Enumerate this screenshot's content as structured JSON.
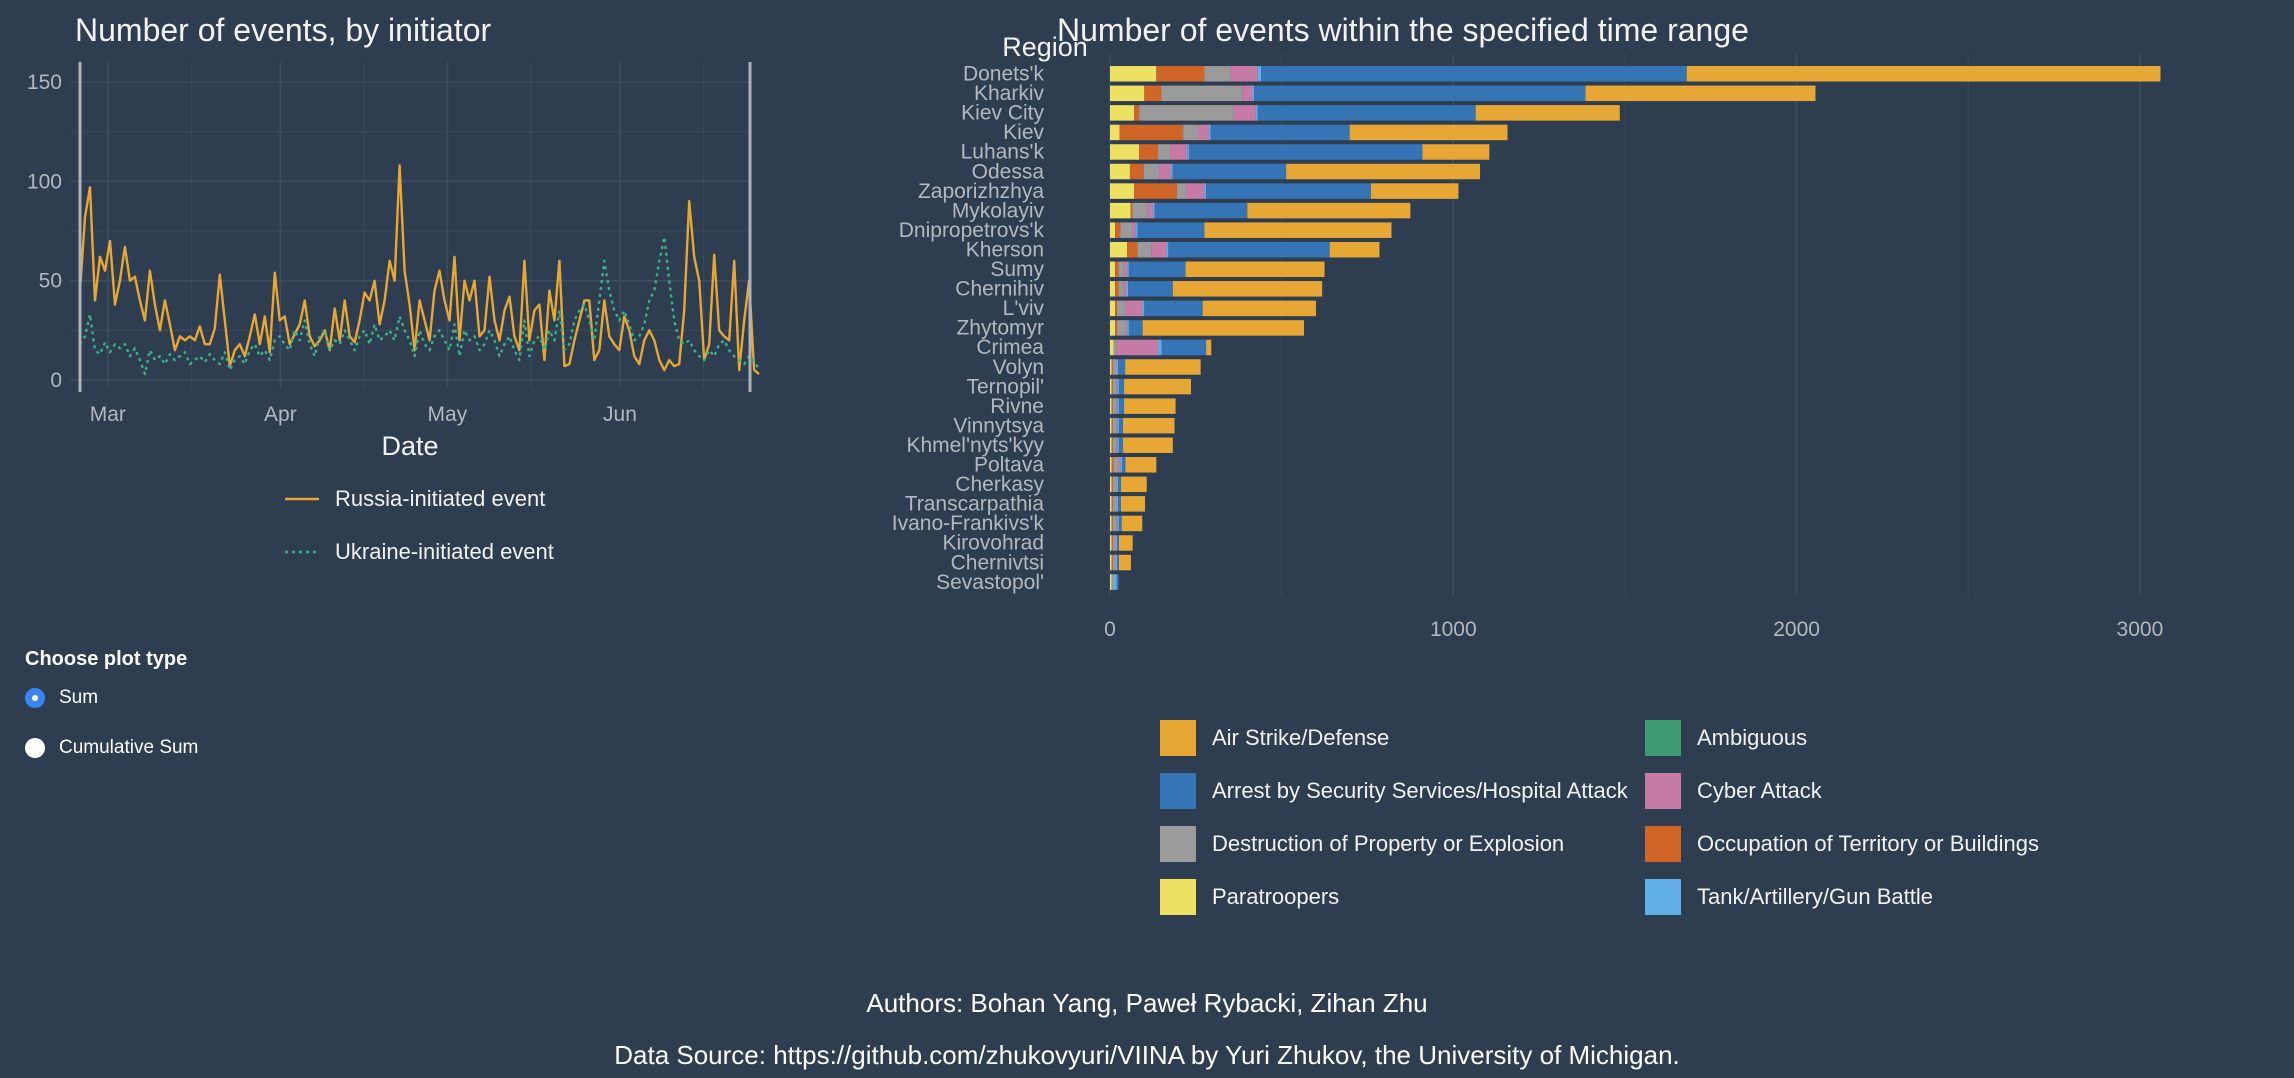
{
  "colors": {
    "background": "#2e3d4f",
    "grid": "#3e4d5f",
    "russia_line": "#e6a735",
    "ukraine_line": "#3bb18a",
    "radio_accent": "#3a86f0"
  },
  "chart_data": [
    {
      "type": "line",
      "title": "Number of events, by initiator",
      "xlabel": "Date",
      "ylabel": "",
      "ylim": [
        0,
        150
      ],
      "y_ticks": [
        0,
        50,
        100,
        150
      ],
      "x_ticks": [
        {
          "label": "Mar",
          "date": "2022-03-01"
        },
        {
          "label": "Apr",
          "date": "2022-04-01"
        },
        {
          "label": "May",
          "date": "2022-05-01"
        },
        {
          "label": "Jun",
          "date": "2022-06-01"
        }
      ],
      "x_range": [
        "2022-02-24",
        "2022-06-24"
      ],
      "selected_range": [
        "2022-02-24",
        "2022-06-24"
      ],
      "x_start": "2022-02-24",
      "legend_position": "bottom",
      "series": [
        {
          "name": "Russia-initiated event",
          "style": "solid",
          "color": "#e6a735",
          "values": [
            45,
            82,
            97,
            40,
            62,
            55,
            70,
            38,
            50,
            67,
            50,
            52,
            40,
            30,
            55,
            38,
            25,
            40,
            28,
            15,
            22,
            20,
            22,
            20,
            27,
            18,
            18,
            26,
            53,
            30,
            7,
            15,
            18,
            12,
            22,
            33,
            18,
            32,
            14,
            54,
            30,
            32,
            18,
            23,
            28,
            40,
            22,
            17,
            20,
            25,
            15,
            36,
            20,
            40,
            22,
            19,
            30,
            44,
            40,
            50,
            28,
            40,
            60,
            50,
            108,
            55,
            38,
            15,
            40,
            30,
            20,
            45,
            55,
            40,
            30,
            62,
            20,
            50,
            40,
            50,
            22,
            25,
            52,
            30,
            20,
            35,
            42,
            22,
            15,
            60,
            20,
            35,
            38,
            10,
            45,
            30,
            60,
            7,
            8,
            20,
            30,
            40,
            40,
            10,
            15,
            40,
            22,
            18,
            15,
            32,
            25,
            12,
            8,
            20,
            25,
            20,
            10,
            5,
            10,
            7,
            8,
            35,
            90,
            62,
            50,
            10,
            18,
            63,
            25,
            22,
            20,
            60,
            5,
            30,
            50,
            5,
            3
          ]
        },
        {
          "name": "Ukraine-initiated event",
          "style": "dotted",
          "color": "#3bb18a",
          "values": [
            18,
            22,
            33,
            15,
            13,
            19,
            14,
            18,
            16,
            18,
            12,
            16,
            10,
            3,
            15,
            10,
            12,
            8,
            13,
            10,
            12,
            14,
            8,
            10,
            12,
            9,
            13,
            10,
            8,
            14,
            5,
            10,
            12,
            8,
            15,
            18,
            12,
            15,
            10,
            20,
            22,
            18,
            15,
            25,
            20,
            30,
            18,
            12,
            22,
            25,
            15,
            20,
            18,
            25,
            20,
            15,
            22,
            25,
            18,
            28,
            20,
            22,
            25,
            20,
            32,
            25,
            20,
            12,
            25,
            18,
            15,
            22,
            25,
            20,
            15,
            28,
            12,
            25,
            20,
            22,
            15,
            18,
            25,
            20,
            12,
            18,
            22,
            15,
            10,
            30,
            12,
            20,
            22,
            15,
            25,
            20,
            35,
            15,
            18,
            30,
            35,
            38,
            30,
            20,
            40,
            60,
            45,
            35,
            30,
            35,
            28,
            20,
            22,
            28,
            40,
            45,
            60,
            72,
            50,
            30,
            20,
            18,
            20,
            15,
            12,
            10,
            15,
            12,
            18,
            20,
            15,
            12,
            10,
            8,
            12,
            10,
            5
          ]
        }
      ]
    },
    {
      "type": "bar",
      "orientation": "horizontal",
      "stacked": true,
      "title": "Number of events within the specified time range",
      "ylabel": "Region",
      "xlabel": "",
      "xlim": [
        0,
        3100
      ],
      "x_ticks": [
        0,
        1000,
        2000,
        3000
      ],
      "legend_position": "bottom",
      "stack_order": [
        "Paratroopers",
        "Occupation of Territory or Buildings",
        "Destruction of Property or Explosion",
        "Cyber Attack",
        "Ambiguous",
        "Tank/Artillery/Gun Battle",
        "Arrest by Security Services/Hospital Attack",
        "Air Strike/Defense"
      ],
      "legend": [
        {
          "name": "Air Strike/Defense",
          "color": "#e6a735"
        },
        {
          "name": "Ambiguous",
          "color": "#3f9a72"
        },
        {
          "name": "Arrest by Security Services/Hospital Attack",
          "color": "#3574b5"
        },
        {
          "name": "Cyber Attack",
          "color": "#c67ba6"
        },
        {
          "name": "Destruction of Property or Explosion",
          "color": "#9b9b9b"
        },
        {
          "name": "Occupation of Territory or Buildings",
          "color": "#cf6526"
        },
        {
          "name": "Paratroopers",
          "color": "#ede163"
        },
        {
          "name": "Tank/Artillery/Gun Battle",
          "color": "#62aee6"
        }
      ],
      "categories": [
        "Donets'k",
        "Kharkiv",
        "Kiev City",
        "Kiev",
        "Luhans'k",
        "Odessa",
        "Zaporizhzhya",
        "Mykolayiv",
        "Dnipropetrovs'k",
        "Kherson",
        "Sumy",
        "Chernihiv",
        "L'viv",
        "Zhytomyr",
        "Crimea",
        "Volyn",
        "Ternopil'",
        "Rivne",
        "Vinnytsya",
        "Khmel'nyts'kyy",
        "Poltava",
        "Cherkasy",
        "Transcarpathia",
        "Ivano-Frankivs'k",
        "Kirovohrad",
        "Chernivtsi",
        "Sevastopol'"
      ],
      "series": [
        {
          "name": "Paratroopers",
          "values": [
            135,
            100,
            70,
            28,
            85,
            58,
            70,
            60,
            15,
            50,
            15,
            15,
            15,
            15,
            10,
            5,
            5,
            5,
            5,
            5,
            5,
            5,
            5,
            5,
            5,
            5,
            5
          ]
        },
        {
          "name": "Occupation of Territory or Buildings",
          "values": [
            140,
            50,
            15,
            185,
            55,
            40,
            125,
            5,
            15,
            30,
            10,
            10,
            5,
            5,
            0,
            3,
            3,
            3,
            3,
            3,
            5,
            3,
            3,
            3,
            3,
            3,
            0
          ]
        },
        {
          "name": "Destruction of Property or Explosion",
          "values": [
            75,
            235,
            275,
            45,
            35,
            45,
            25,
            45,
            35,
            40,
            15,
            15,
            25,
            25,
            10,
            8,
            10,
            10,
            10,
            10,
            15,
            8,
            8,
            10,
            5,
            5,
            5
          ]
        },
        {
          "name": "Cyber Attack",
          "values": [
            80,
            30,
            65,
            30,
            50,
            35,
            55,
            15,
            10,
            45,
            10,
            8,
            50,
            5,
            120,
            3,
            3,
            3,
            3,
            3,
            5,
            3,
            3,
            3,
            3,
            3,
            0
          ]
        },
        {
          "name": "Ambiguous",
          "values": [
            0,
            0,
            0,
            0,
            0,
            0,
            0,
            0,
            0,
            0,
            0,
            0,
            0,
            0,
            0,
            0,
            0,
            0,
            0,
            0,
            0,
            0,
            0,
            0,
            0,
            0,
            0
          ]
        },
        {
          "name": "Tank/Artillery/Gun Battle",
          "values": [
            10,
            5,
            5,
            5,
            5,
            5,
            5,
            5,
            5,
            5,
            5,
            5,
            5,
            5,
            10,
            5,
            5,
            5,
            5,
            5,
            5,
            5,
            5,
            5,
            5,
            5,
            10
          ]
        },
        {
          "name": "Arrest by Security Services/Hospital Attack",
          "values": [
            1240,
            965,
            635,
            405,
            680,
            330,
            480,
            270,
            195,
            470,
            165,
            130,
            170,
            40,
            130,
            20,
            15,
            15,
            12,
            12,
            10,
            8,
            8,
            8,
            5,
            5,
            5
          ]
        },
        {
          "name": "Air Strike/Defense",
          "values": [
            1380,
            670,
            420,
            460,
            195,
            565,
            255,
            475,
            545,
            145,
            405,
            435,
            330,
            470,
            15,
            220,
            195,
            150,
            150,
            145,
            90,
            75,
            70,
            60,
            40,
            35,
            0
          ]
        }
      ]
    }
  ],
  "controls": {
    "plot_type_label": "Choose plot type",
    "options": [
      {
        "label": "Sum",
        "selected": true
      },
      {
        "label": "Cumulative Sum",
        "selected": false
      }
    ]
  },
  "footer": {
    "authors": "Authors: Bohan Yang, Paweł Rybacki, Zihan Zhu",
    "source": "Data Source: https://github.com/zhukovyuri/VIINA by Yuri Zhukov, the University of Michigan."
  }
}
